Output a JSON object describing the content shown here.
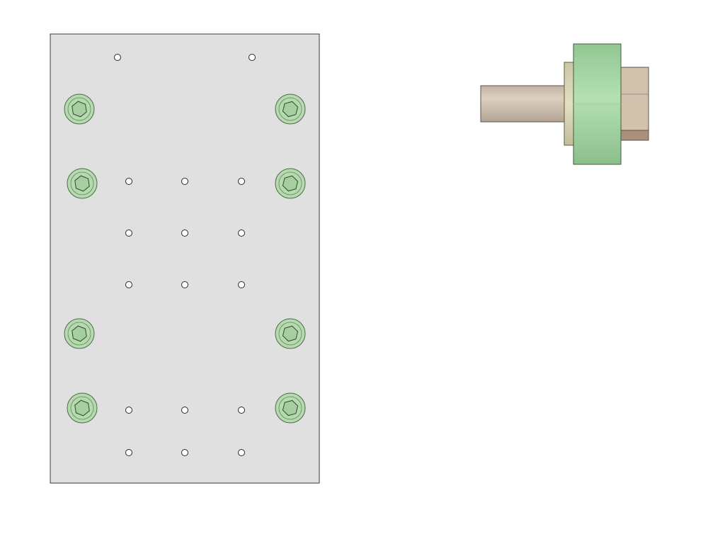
{
  "colors": {
    "background": "#ffffff",
    "plate_fill": "#e0e0e0",
    "plate_stroke": "#3a3a3a",
    "bolt_fill": "#b6d9b0",
    "bolt_stroke": "#4d6b4a",
    "hole_fill": "#ffffff",
    "hole_stroke": "#2a2a2a",
    "shaft_fill": "#d3c5b4",
    "washer_fill": "#d8d5b6",
    "flange_fill": "#a9d8a8",
    "nut_fill": "#d1c1ad",
    "nut_shadow": "#a8917c"
  },
  "plate_view": {
    "socket_head_screws": {
      "count": 8,
      "drive": "hex socket",
      "head_icon": "hex-socket-icon"
    },
    "small_holes": {
      "count": 17
    }
  },
  "side_view": {
    "parts": [
      "shaft",
      "washer",
      "flange",
      "hex-nut"
    ]
  }
}
